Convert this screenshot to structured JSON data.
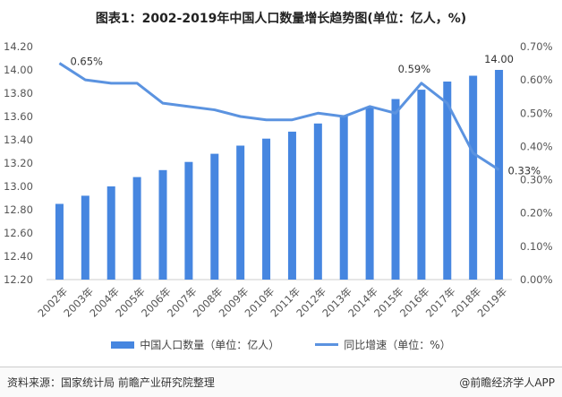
{
  "title": "图表1：2002-2019年中国人口数量增长趋势图(单位：亿人，%)",
  "chart_data": {
    "type": "bar+line",
    "categories": [
      "2002年",
      "2003年",
      "2004年",
      "2005年",
      "2006年",
      "2007年",
      "2008年",
      "2009年",
      "2010年",
      "2011年",
      "2012年",
      "2013年",
      "2014年",
      "2015年",
      "2016年",
      "2017年",
      "2018年",
      "2019年"
    ],
    "series": [
      {
        "name": "中国人口数量（单位：亿人）",
        "type": "bar",
        "axis": "left",
        "color": "#4686e0",
        "values": [
          12.85,
          12.92,
          13.0,
          13.08,
          13.14,
          13.21,
          13.28,
          13.35,
          13.41,
          13.47,
          13.54,
          13.61,
          13.68,
          13.75,
          13.83,
          13.9,
          13.95,
          14.0
        ]
      },
      {
        "name": "同比增速（单位：%）",
        "type": "line",
        "axis": "right",
        "color": "#5b93e0",
        "values": [
          0.65,
          0.6,
          0.59,
          0.59,
          0.53,
          0.52,
          0.51,
          0.49,
          0.48,
          0.48,
          0.5,
          0.49,
          0.52,
          0.5,
          0.59,
          0.53,
          0.38,
          0.33
        ]
      }
    ],
    "left_axis": {
      "ticks": [
        "12.20",
        "12.40",
        "12.60",
        "12.80",
        "13.00",
        "13.20",
        "13.40",
        "13.60",
        "13.80",
        "14.00",
        "14.20"
      ],
      "range": [
        12.2,
        14.2
      ]
    },
    "right_axis": {
      "ticks": [
        "0.00%",
        "0.10%",
        "0.20%",
        "0.30%",
        "0.40%",
        "0.50%",
        "0.60%",
        "0.70%"
      ],
      "range": [
        0,
        0.7
      ]
    },
    "annotations": [
      {
        "series": 1,
        "index": 0,
        "text": "0.65%"
      },
      {
        "series": 1,
        "index": 14,
        "text": "0.59%"
      },
      {
        "series": 1,
        "index": 17,
        "text": "0.33%"
      },
      {
        "series": 0,
        "index": 17,
        "text": "14.00"
      }
    ],
    "grid": false,
    "legend": "bottom"
  },
  "legend": {
    "bar": "中国人口数量（单位：亿人）",
    "line": "同比增速（单位：%）"
  },
  "footer": {
    "source": "资料来源：国家统计局 前瞻产业研究院整理",
    "brand": "@前瞻经济学人APP"
  }
}
